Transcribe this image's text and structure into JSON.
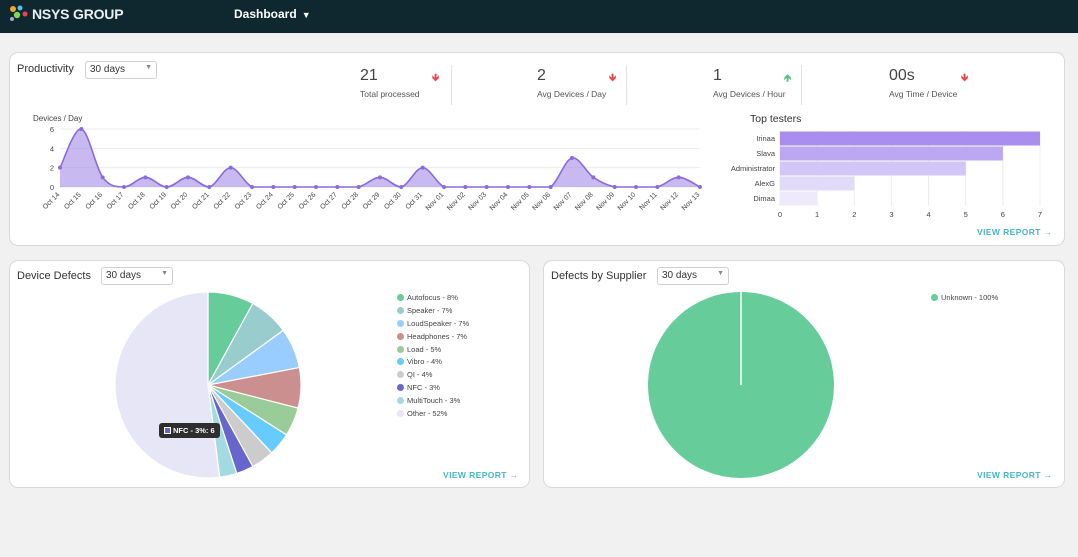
{
  "header": {
    "logo_text": "NSYS GROUP",
    "nav_label": "Dashboard",
    "nav_caret": "▼"
  },
  "productivity": {
    "title": "Productivity",
    "range_select": "30 days",
    "stats": [
      {
        "value": "21",
        "label": "Total processed",
        "trend": "down",
        "arrow": "🡻"
      },
      {
        "value": "2",
        "label": "Avg Devices / Day",
        "trend": "down",
        "arrow": "🡻"
      },
      {
        "value": "1",
        "label": "Avg Devices / Hour",
        "trend": "up",
        "arrow": "🡹"
      },
      {
        "value": "00s",
        "label": "Avg Time / Device",
        "trend": "down",
        "arrow": "🡻"
      }
    ],
    "colors": {
      "down": "#e8454e",
      "up": "#5cc08c"
    },
    "view_report": "VIEW REPORT →"
  },
  "device_defects": {
    "title": "Device Defects",
    "range_select": "30 days",
    "view_report": "VIEW REPORT →",
    "tooltip": "NFC - 3%: 6"
  },
  "defects_by_supplier": {
    "title": "Defects by Supplier",
    "range_select": "30 days",
    "view_report": "VIEW REPORT →"
  },
  "chart_data": [
    {
      "type": "area",
      "ylabel": "Devices / Day",
      "ylim": [
        0,
        6
      ],
      "yticks": [
        0,
        2,
        4,
        6
      ],
      "grid": true,
      "color": "#9b7fe6",
      "categories": [
        "Oct 14",
        "Oct 15",
        "Oct 16",
        "Oct 17",
        "Oct 18",
        "Oct 19",
        "Oct 20",
        "Oct 21",
        "Oct 22",
        "Oct 23",
        "Oct 24",
        "Oct 25",
        "Oct 26",
        "Oct 27",
        "Oct 28",
        "Oct 29",
        "Oct 30",
        "Oct 31",
        "Nov 01",
        "Nov 02",
        "Nov 03",
        "Nov 04",
        "Nov 05",
        "Nov 06",
        "Nov 07",
        "Nov 08",
        "Nov 09",
        "Nov 10",
        "Nov 11",
        "Nov 12",
        "Nov 13"
      ],
      "values": [
        2,
        6,
        1,
        0,
        1,
        0,
        1,
        0,
        2,
        0,
        0,
        0,
        0,
        0,
        0,
        1,
        0,
        2,
        0,
        0,
        0,
        0,
        0,
        0,
        3,
        1,
        0,
        0,
        0,
        1,
        0
      ]
    },
    {
      "type": "bar",
      "orientation": "horizontal",
      "title": "Top testers",
      "categories": [
        "Irinaa",
        "Slava",
        "Administrator",
        "AlexG",
        "Dimaa"
      ],
      "values": [
        7,
        6,
        5,
        2,
        1
      ],
      "xlim": [
        0,
        7
      ],
      "xticks": [
        0,
        1,
        2,
        3,
        4,
        5,
        6,
        7
      ],
      "colors": [
        "#a98ef0",
        "#bca8f2",
        "#d2c6f6",
        "#e2daf9",
        "#eeeafb"
      ]
    },
    {
      "type": "pie",
      "slices": [
        {
          "label": "Autofocus - 8%",
          "value": 8,
          "color": "#66cc99"
        },
        {
          "label": "Speaker - 7%",
          "value": 7,
          "color": "#99cccc"
        },
        {
          "label": "LoudSpeaker - 7%",
          "value": 7,
          "color": "#99ccff"
        },
        {
          "label": "Headphones - 7%",
          "value": 7,
          "color": "#cc8f8f"
        },
        {
          "label": "Load - 5%",
          "value": 5,
          "color": "#99cc99"
        },
        {
          "label": "Vibro - 4%",
          "value": 4,
          "color": "#66ccff"
        },
        {
          "label": "QI - 4%",
          "value": 4,
          "color": "#cccccc"
        },
        {
          "label": "NFC - 3%",
          "value": 3,
          "color": "#6666cc"
        },
        {
          "label": "MultiTouch - 3%",
          "value": 3,
          "color": "#a3d9e0"
        },
        {
          "label": "Other - 52%",
          "value": 52,
          "color": "#e6e6f7"
        }
      ]
    },
    {
      "type": "pie",
      "slices": [
        {
          "label": "Unknown - 100%",
          "value": 100,
          "color": "#66cc99"
        }
      ]
    }
  ]
}
